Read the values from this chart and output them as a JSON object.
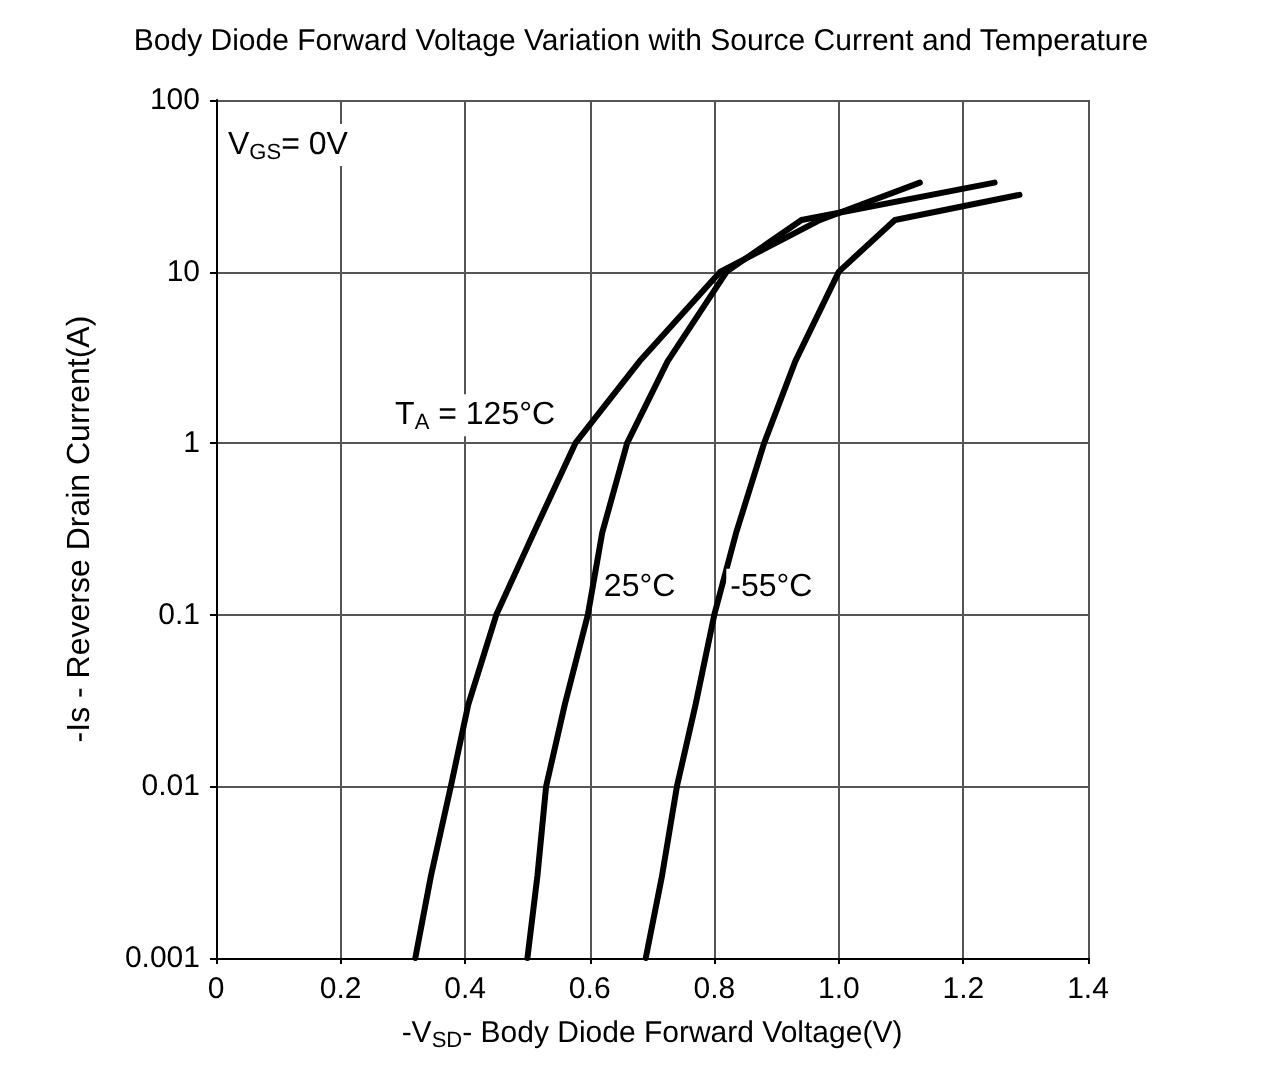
{
  "chart_data": {
    "type": "line",
    "title": "Body Diode Forward Voltage Variation with Source Current and Temperature",
    "xlabel": "-V$_{SD}$- Body Diode Forward Voltage(V)",
    "ylabel": "-Is - Reverse Drain Current(A)",
    "annotations": [
      "V$_{GS}$= 0V"
    ],
    "series": [
      {
        "name": "T$_{A}$ = 125°C",
        "color": "#000000",
        "x": [
          0.32,
          0.345,
          0.377,
          0.405,
          0.45,
          0.51,
          0.577,
          0.68,
          0.81,
          0.97,
          1.13
        ],
        "values": [
          0.001,
          0.003,
          0.01,
          0.03,
          0.1,
          0.3,
          1,
          3,
          10,
          20,
          33
        ]
      },
      {
        "name": "25°C",
        "color": "#000000",
        "x": [
          0.5,
          0.516,
          0.53,
          0.56,
          0.597,
          0.62,
          0.66,
          0.725,
          0.82,
          0.94,
          1.25
        ],
        "values": [
          0.001,
          0.003,
          0.01,
          0.03,
          0.1,
          0.3,
          1,
          3,
          10,
          20,
          33
        ]
      },
      {
        "name": "-55°C",
        "color": "#000000",
        "x": [
          0.69,
          0.716,
          0.74,
          0.77,
          0.8,
          0.835,
          0.88,
          0.93,
          1.0,
          1.09,
          1.29
        ],
        "values": [
          0.001,
          0.003,
          0.01,
          0.03,
          0.1,
          0.3,
          1,
          3,
          10,
          20,
          28
        ]
      }
    ],
    "xlim": [
      0,
      1.4
    ],
    "xticks": [
      0,
      0.2,
      0.4,
      0.6,
      0.8,
      {
        "value": 1,
        "label": "1.0"
      },
      1.2,
      1.4
    ],
    "ylim": [
      0.001,
      100
    ],
    "yticks": [
      0.001,
      0.01,
      0.1,
      1,
      10,
      100
    ],
    "log": "y",
    "grid": true,
    "legend": false,
    "marker": "none",
    "line_style": "solid"
  }
}
